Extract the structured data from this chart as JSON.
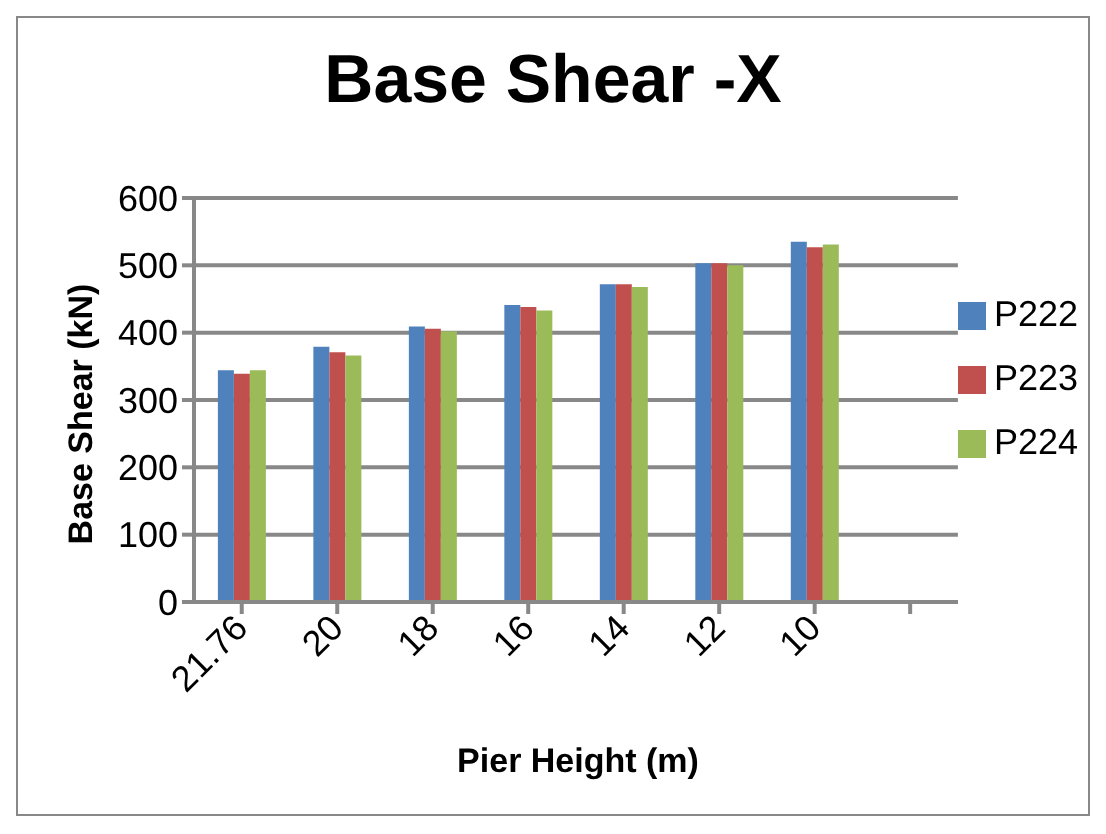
{
  "chart_data": {
    "type": "bar",
    "title": "Base Shear -X",
    "xlabel": "Pier Height (m)",
    "ylabel": "Base Shear (kN)",
    "categories": [
      "21.76",
      "20",
      "18",
      "16",
      "14",
      "12",
      "10",
      null
    ],
    "series": [
      {
        "name": "P222",
        "color": "#4f81bd",
        "values": [
          344,
          379,
          409,
          441,
          472,
          503,
          535,
          null
        ]
      },
      {
        "name": "P223",
        "color": "#c0504d",
        "values": [
          339,
          371,
          406,
          438,
          472,
          503,
          527,
          null
        ]
      },
      {
        "name": "P224",
        "color": "#9bbb59",
        "values": [
          344,
          366,
          402,
          433,
          468,
          500,
          531,
          null
        ]
      }
    ],
    "ylim": [
      0,
      600
    ],
    "yticks": [
      0,
      100,
      200,
      300,
      400,
      500,
      600
    ],
    "grid": "y",
    "legend": "right"
  }
}
